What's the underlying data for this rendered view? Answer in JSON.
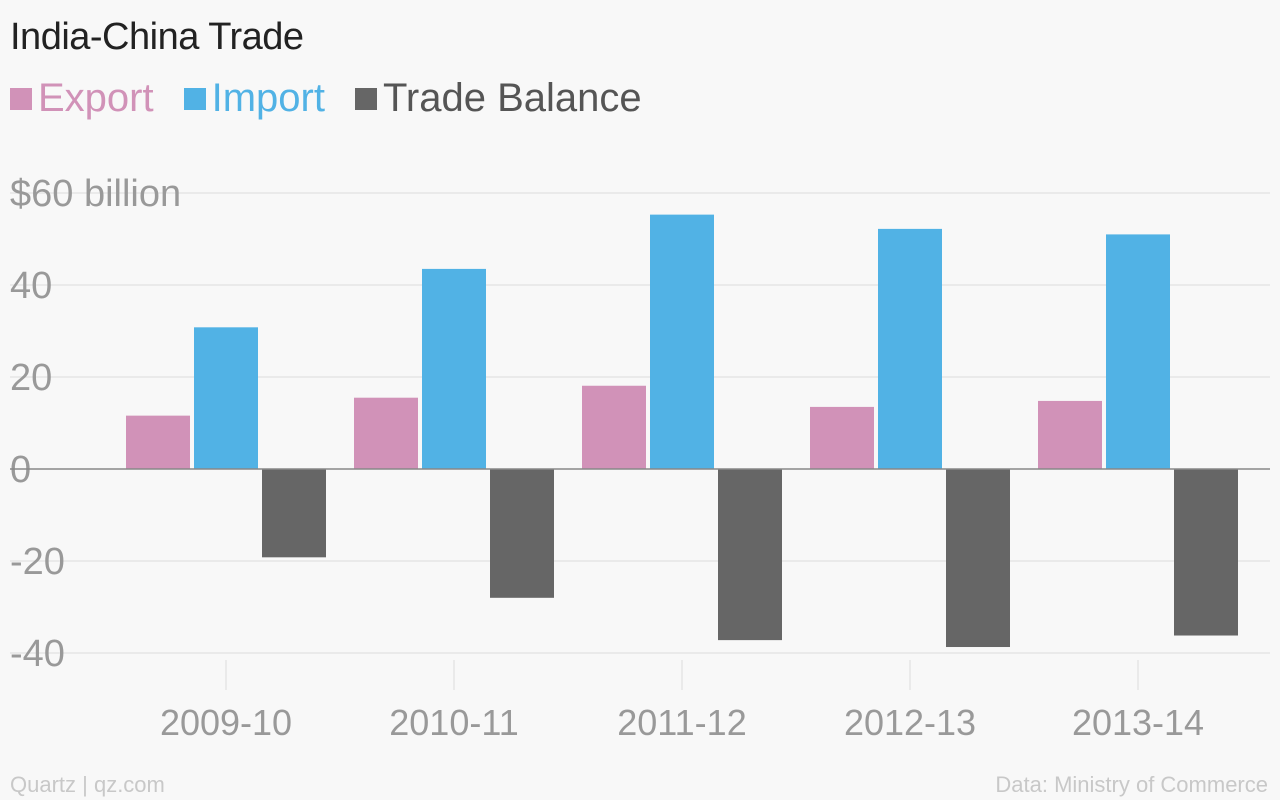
{
  "title": "India-China Trade",
  "footer": {
    "credit": "Quartz | qz.com",
    "source": "Data: Ministry of Commerce"
  },
  "colors": {
    "export": "#d192b8",
    "import": "#51b2e5",
    "balance": "#666666",
    "grid": "#e6e6e6",
    "zero": "#888888",
    "tick": "#999999"
  },
  "chart_data": {
    "type": "bar",
    "categories": [
      "2009-10",
      "2010-11",
      "2011-12",
      "2012-13",
      "2013-14"
    ],
    "series": [
      {
        "name": "Export",
        "values": [
          11.6,
          15.5,
          18.1,
          13.5,
          14.8
        ]
      },
      {
        "name": "Import",
        "values": [
          30.8,
          43.5,
          55.3,
          52.2,
          51.0
        ]
      },
      {
        "name": "Trade Balance",
        "values": [
          -19.2,
          -28.0,
          -37.2,
          -38.7,
          -36.2
        ]
      }
    ],
    "ylim": [
      -40,
      60
    ],
    "yticks": [
      {
        "value": 60,
        "label": "$60 billion"
      },
      {
        "value": 40,
        "label": "40"
      },
      {
        "value": 20,
        "label": "20"
      },
      {
        "value": 0,
        "label": "0"
      },
      {
        "value": -20,
        "label": "-20"
      },
      {
        "value": -40,
        "label": "-40"
      }
    ],
    "grid": true,
    "legend_position": "top-left"
  }
}
